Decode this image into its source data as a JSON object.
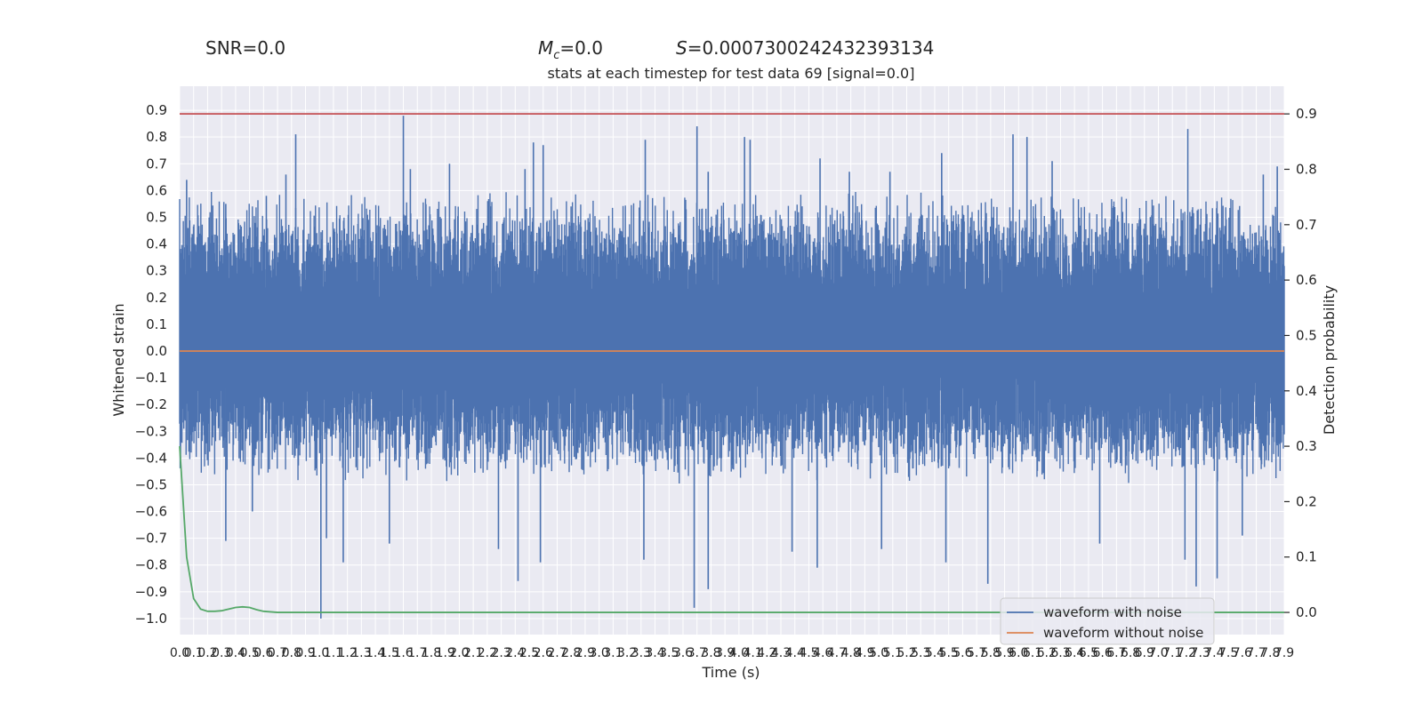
{
  "chart_data": {
    "type": "line",
    "top_labels": {
      "snr": "SNR=0.0",
      "mc_symbol": "M",
      "mc_subscript": "c",
      "mc_value": "=0.0",
      "s_symbol": "S",
      "s_value": "=0.0007300242432393134"
    },
    "title": "stats at each timestep for test data 69 [signal=0.0]",
    "xlabel": "Time (s)",
    "ylabel_left": "Whitened strain",
    "ylabel_right": "Detection probability",
    "xlim": [
      0.0,
      7.9
    ],
    "ylim_left": [
      -1.06,
      0.99
    ],
    "ylim_right": [
      -0.04,
      0.95
    ],
    "x_tick_step": 0.1,
    "x_tick_labels": [
      "0.0",
      "0.1",
      "0.2",
      "0.3",
      "0.4",
      "0.5",
      "0.6",
      "0.7",
      "0.8",
      "0.9",
      "1.0",
      "1.1",
      "1.2",
      "1.3",
      "1.4",
      "1.5",
      "1.6",
      "1.7",
      "1.8",
      "1.9",
      "2.0",
      "2.1",
      "2.2",
      "2.3",
      "2.4",
      "2.5",
      "2.6",
      "2.7",
      "2.8",
      "2.9",
      "3.0",
      "3.1",
      "3.2",
      "3.3",
      "3.4",
      "3.5",
      "3.6",
      "3.7",
      "3.8",
      "3.9",
      "4.0",
      "4.1",
      "4.2",
      "4.3",
      "4.4",
      "4.5",
      "4.6",
      "4.7",
      "4.8",
      "4.9",
      "5.0",
      "5.1",
      "5.2",
      "5.3",
      "5.4",
      "5.5",
      "5.6",
      "5.7",
      "5.8",
      "5.9",
      "6.0",
      "6.1",
      "6.2",
      "6.3",
      "6.4",
      "6.5",
      "6.6",
      "6.7",
      "6.8",
      "6.9",
      "7.0",
      "7.1",
      "7.2",
      "7.3",
      "7.4",
      "7.5",
      "7.6",
      "7.7",
      "7.8",
      "7.9"
    ],
    "y_left_ticks": [
      0.9,
      0.8,
      0.7,
      0.6,
      0.5,
      0.4,
      0.3,
      0.2,
      0.1,
      0.0,
      -0.1,
      -0.2,
      -0.3,
      -0.4,
      -0.5,
      -0.6,
      -0.7,
      -0.8,
      -0.9,
      -1.0
    ],
    "y_left_tick_labels": [
      "0.9",
      "0.8",
      "0.7",
      "0.6",
      "0.5",
      "0.4",
      "0.3",
      "0.2",
      "0.1",
      "0.0",
      "−0.1",
      "−0.2",
      "−0.3",
      "−0.4",
      "−0.5",
      "−0.6",
      "−0.7",
      "−0.8",
      "−0.9",
      "−1.0"
    ],
    "y_right_ticks": [
      0.9,
      0.8,
      0.7,
      0.6,
      0.5,
      0.4,
      0.3,
      0.2,
      0.1,
      0.0
    ],
    "y_right_tick_labels": [
      "0.9",
      "0.8",
      "0.7",
      "0.6",
      "0.5",
      "0.4",
      "0.3",
      "0.2",
      "0.1",
      "0.0"
    ],
    "series": [
      {
        "name": "waveform with noise",
        "axis": "left",
        "color": "#4c72b0",
        "noise_band": {
          "typical_range": [
            -0.4,
            0.5
          ]
        },
        "peaks": [
          {
            "x": 0.05,
            "y": 0.64
          },
          {
            "x": 0.33,
            "y": 0.55
          },
          {
            "x": 0.62,
            "y": 0.58
          },
          {
            "x": 0.76,
            "y": 0.66
          },
          {
            "x": 0.83,
            "y": 0.81
          },
          {
            "x": 1.6,
            "y": 0.88
          },
          {
            "x": 1.65,
            "y": 0.68
          },
          {
            "x": 1.93,
            "y": 0.7
          },
          {
            "x": 2.47,
            "y": 0.68
          },
          {
            "x": 2.53,
            "y": 0.78
          },
          {
            "x": 2.6,
            "y": 0.77
          },
          {
            "x": 3.33,
            "y": 0.79
          },
          {
            "x": 3.7,
            "y": 0.84
          },
          {
            "x": 3.78,
            "y": 0.67
          },
          {
            "x": 4.04,
            "y": 0.8
          },
          {
            "x": 4.08,
            "y": 0.79
          },
          {
            "x": 4.58,
            "y": 0.72
          },
          {
            "x": 4.79,
            "y": 0.67
          },
          {
            "x": 5.08,
            "y": 0.67
          },
          {
            "x": 5.45,
            "y": 0.74
          },
          {
            "x": 5.96,
            "y": 0.81
          },
          {
            "x": 6.06,
            "y": 0.8
          },
          {
            "x": 6.24,
            "y": 0.71
          },
          {
            "x": 7.21,
            "y": 0.83
          },
          {
            "x": 7.75,
            "y": 0.66
          },
          {
            "x": 7.85,
            "y": 0.69
          }
        ],
        "troughs": [
          {
            "x": 0.33,
            "y": -0.71
          },
          {
            "x": 0.52,
            "y": -0.6
          },
          {
            "x": 1.01,
            "y": -1.0
          },
          {
            "x": 1.05,
            "y": -0.7
          },
          {
            "x": 1.17,
            "y": -0.79
          },
          {
            "x": 1.5,
            "y": -0.72
          },
          {
            "x": 2.28,
            "y": -0.74
          },
          {
            "x": 2.42,
            "y": -0.86
          },
          {
            "x": 2.58,
            "y": -0.79
          },
          {
            "x": 3.32,
            "y": -0.78
          },
          {
            "x": 3.68,
            "y": -0.96
          },
          {
            "x": 3.78,
            "y": -0.89
          },
          {
            "x": 4.38,
            "y": -0.75
          },
          {
            "x": 4.56,
            "y": -0.81
          },
          {
            "x": 5.02,
            "y": -0.74
          },
          {
            "x": 5.48,
            "y": -0.79
          },
          {
            "x": 5.78,
            "y": -0.87
          },
          {
            "x": 6.58,
            "y": -0.72
          },
          {
            "x": 7.19,
            "y": -0.78
          },
          {
            "x": 7.27,
            "y": -0.88
          },
          {
            "x": 7.42,
            "y": -0.85
          },
          {
            "x": 7.6,
            "y": -0.69
          }
        ]
      },
      {
        "name": "waveform without noise",
        "axis": "left",
        "color": "#dd8452",
        "x": [
          0.0,
          7.9
        ],
        "y": [
          0.0,
          0.0
        ]
      },
      {
        "axis": "right",
        "color": "#55a868",
        "x": [
          0.0,
          0.05,
          0.1,
          0.15,
          0.2,
          0.25,
          0.3,
          0.35,
          0.4,
          0.45,
          0.5,
          0.55,
          0.6,
          0.65,
          0.7,
          0.8,
          0.9,
          1.0,
          7.9
        ],
        "y": [
          0.3,
          0.1,
          0.025,
          0.006,
          0.002,
          0.002,
          0.003,
          0.006,
          0.009,
          0.01,
          0.009,
          0.005,
          0.002,
          0.001,
          0.0,
          0.0,
          0.0,
          0.0,
          0.0
        ]
      },
      {
        "axis": "right",
        "color": "#c44e52",
        "x": [
          0.0,
          7.9
        ],
        "y": [
          0.9,
          0.9
        ]
      }
    ],
    "legend": {
      "position": "bottom-right",
      "entries": [
        {
          "label": "waveform with noise",
          "color": "#4c72b0"
        },
        {
          "label": "waveform without noise",
          "color": "#dd8452"
        }
      ]
    },
    "grid": true,
    "colors": {
      "plot_bg": "#eaeaf2",
      "grid": "#ffffff",
      "text": "#262626"
    }
  }
}
